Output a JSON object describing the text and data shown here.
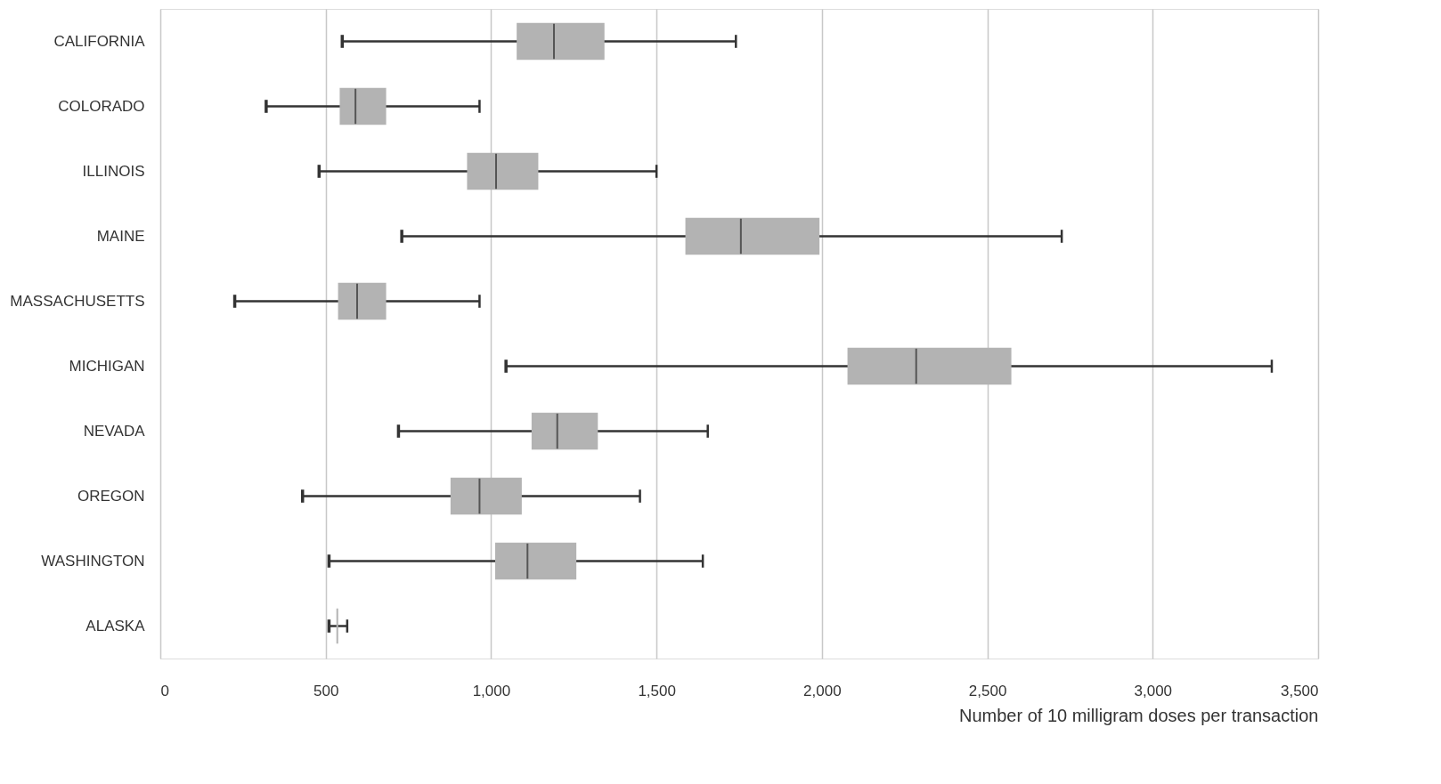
{
  "chart_data": {
    "type": "box",
    "orientation": "horizontal",
    "xlabel": "Number of 10 milligram doses per transaction",
    "categories": [
      "CALIFORNIA",
      "COLORADO",
      "ILLINOIS",
      "MAINE",
      "MASSACHUSETTS",
      "MICHIGAN",
      "NEVADA",
      "OREGON",
      "WASHINGTON",
      "ALASKA"
    ],
    "series": [
      {
        "color": "#b3b3b3",
        "boxes": [
          {
            "low": 550,
            "q1": 1080,
            "median": 1190,
            "q3": 1340,
            "high": 1740
          },
          {
            "low": 320,
            "q1": 545,
            "median": 590,
            "q3": 680,
            "high": 965
          },
          {
            "low": 480,
            "q1": 930,
            "median": 1015,
            "q3": 1140,
            "high": 1500
          },
          {
            "low": 730,
            "q1": 1590,
            "median": 1755,
            "q3": 1990,
            "high": 2725
          },
          {
            "low": 225,
            "q1": 540,
            "median": 595,
            "q3": 680,
            "high": 965
          },
          {
            "low": 1045,
            "q1": 2080,
            "median": 2285,
            "q3": 2570,
            "high": 3360
          },
          {
            "low": 720,
            "q1": 1125,
            "median": 1200,
            "q3": 1320,
            "high": 1655
          },
          {
            "low": 430,
            "q1": 880,
            "median": 965,
            "q3": 1090,
            "high": 1450
          },
          {
            "low": 510,
            "q1": 1015,
            "median": 1110,
            "q3": 1255,
            "high": 1640
          },
          {
            "low": 510,
            "q1": 535,
            "median": null,
            "q3": 535,
            "high": 565
          }
        ]
      }
    ],
    "xlim": [
      0,
      3500
    ],
    "xticks": [
      {
        "value": 0,
        "label": "0"
      },
      {
        "value": 500,
        "label": "500"
      },
      {
        "value": 1000,
        "label": "1,000"
      },
      {
        "value": 1500,
        "label": "1,500"
      },
      {
        "value": 2000,
        "label": "2,000"
      },
      {
        "value": 2500,
        "label": "2,500"
      },
      {
        "value": 3000,
        "label": "3,000"
      },
      {
        "value": 3500,
        "label": "3,500"
      }
    ],
    "grid": "x"
  }
}
